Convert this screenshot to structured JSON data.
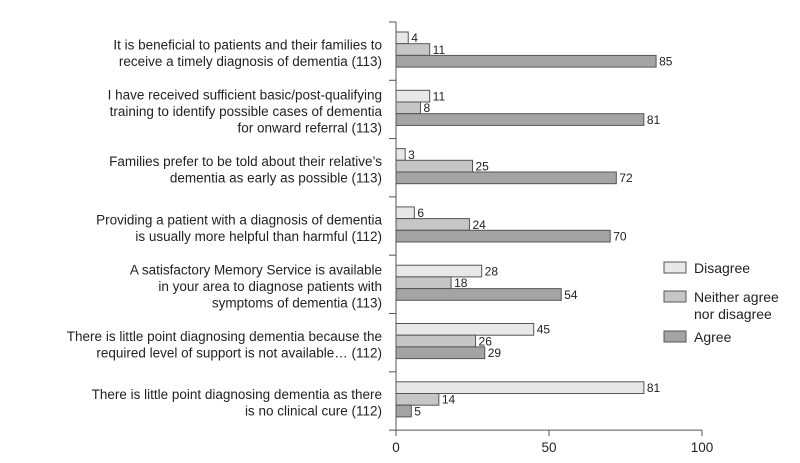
{
  "chart_data": {
    "type": "bar",
    "orientation": "horizontal",
    "title": "",
    "xlabel": "",
    "ylabel": "",
    "xlim": [
      0,
      100
    ],
    "xticks": [
      0,
      50,
      100
    ],
    "grid": false,
    "legend_position": "right",
    "categories": [
      [
        "It is beneficial to patients and their families to",
        "receive a timely diagnosis of dementia (113)"
      ],
      [
        "I have received sufficient basic/post-qualifying",
        "training to identify possible cases of dementia",
        "for onward referral (113)"
      ],
      [
        "Families prefer to be told about their relative’s",
        "dementia as early as possible (113)"
      ],
      [
        "Providing a patient with a diagnosis of dementia",
        "is usually more helpful than harmful (112)"
      ],
      [
        "A satisfactory Memory Service is available",
        "in your area to diagnose patients with",
        "symptoms of dementia (113)"
      ],
      [
        "There is little point diagnosing dementia because the",
        "required level of support is not available… (112)"
      ],
      [
        "There is little point diagnosing dementia as there",
        "is no clinical cure (112)"
      ]
    ],
    "series": [
      {
        "name": "Disagree",
        "color": "#e8e8e8",
        "values": [
          4,
          11,
          3,
          6,
          28,
          45,
          81
        ]
      },
      {
        "name": "Neither agree nor disagree",
        "color": "#c6c6c6",
        "values": [
          11,
          8,
          25,
          24,
          18,
          26,
          14
        ]
      },
      {
        "name": "Agree",
        "color": "#a4a4a4",
        "values": [
          85,
          81,
          72,
          70,
          54,
          29,
          5
        ]
      }
    ],
    "legend": [
      [
        "Disagree"
      ],
      [
        "Neither agree",
        "nor disagree"
      ],
      [
        "Agree"
      ]
    ]
  }
}
